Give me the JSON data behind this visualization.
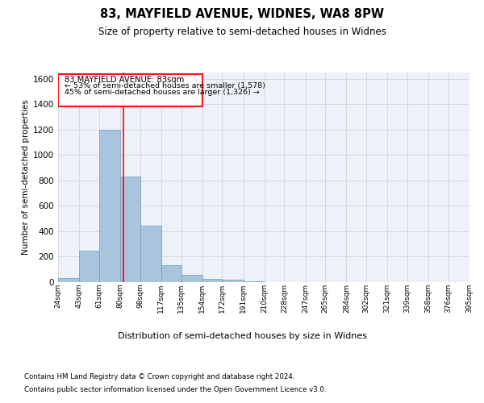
{
  "title1": "83, MAYFIELD AVENUE, WIDNES, WA8 8PW",
  "title2": "Size of property relative to semi-detached houses in Widnes",
  "xlabel": "Distribution of semi-detached houses by size in Widnes",
  "ylabel": "Number of semi-detached properties",
  "footnote1": "Contains HM Land Registry data © Crown copyright and database right 2024.",
  "footnote2": "Contains public sector information licensed under the Open Government Licence v3.0.",
  "annotation_title": "83 MAYFIELD AVENUE: 83sqm",
  "annotation_line1": "← 53% of semi-detached houses are smaller (1,578)",
  "annotation_line2": "45% of semi-detached houses are larger (1,326) →",
  "bar_color": "#aac4de",
  "bar_edge_color": "#6a9fc0",
  "grid_color": "#d0d8e8",
  "background_color": "#eef2f8",
  "property_line_x": 83,
  "ylim": [
    0,
    1650
  ],
  "yticks": [
    0,
    200,
    400,
    600,
    800,
    1000,
    1200,
    1400,
    1600
  ],
  "bin_edges": [
    24,
    43,
    61,
    80,
    98,
    117,
    135,
    154,
    172,
    191,
    210,
    228,
    247,
    265,
    284,
    302,
    321,
    339,
    358,
    376,
    395
  ],
  "bin_values": [
    30,
    250,
    1200,
    830,
    445,
    135,
    60,
    25,
    20,
    5,
    0,
    0,
    0,
    0,
    0,
    0,
    0,
    0,
    0,
    0
  ]
}
